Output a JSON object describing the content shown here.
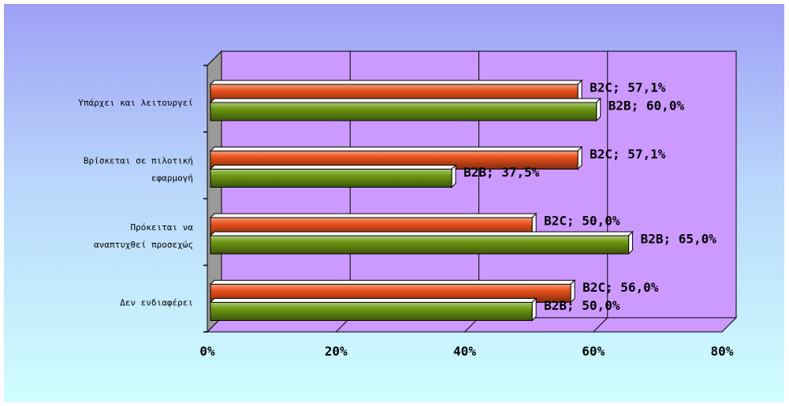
{
  "chart_data": {
    "type": "bar",
    "orientation": "horizontal",
    "categories": [
      [
        "Υπάρχει και λειτουργεί"
      ],
      [
        "Βρίσκεται σε πιλοτική",
        "εφαρμογή"
      ],
      [
        "Πρόκειται να",
        "αναπτυχθεί προσεχώς"
      ],
      [
        "Δεν ενδιαφέρει"
      ]
    ],
    "series": [
      {
        "name": "B2C",
        "values": [
          57.1,
          57.1,
          50.0,
          56.0
        ],
        "labels": [
          "B2C; 57,1%",
          "B2C; 57,1%",
          "B2C; 50,0%",
          "B2C; 56,0%"
        ],
        "color": "#e8501a"
      },
      {
        "name": "B2B",
        "values": [
          60.0,
          37.5,
          65.0,
          50.0
        ],
        "labels": [
          "B2B; 60,0%",
          "B2B; 37,5%",
          "B2B; 65,0%",
          "B2B; 50,0%"
        ],
        "color": "#6e9a12"
      }
    ],
    "xlim": [
      0,
      80
    ],
    "xticks": [
      "0%",
      "20%",
      "40%",
      "60%",
      "80%"
    ],
    "grid": true,
    "legend": "none",
    "plot_background": "#cc99ff"
  }
}
